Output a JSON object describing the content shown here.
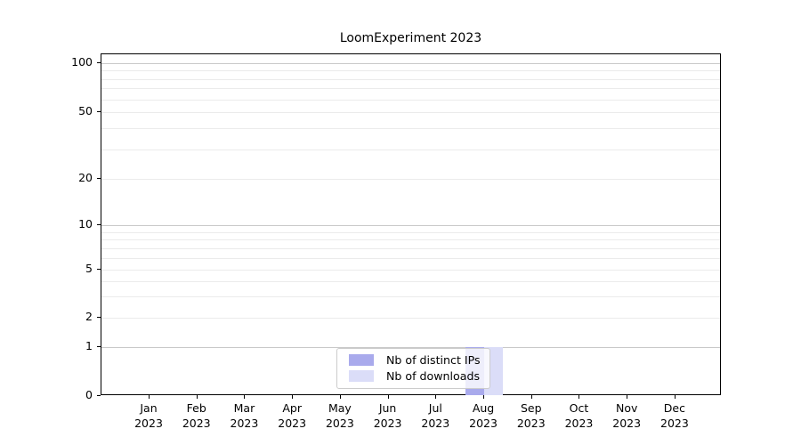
{
  "chart_data": {
    "type": "bar",
    "title": "LoomExperiment 2023",
    "categories": [
      "Jan",
      "Feb",
      "Mar",
      "Apr",
      "May",
      "Jun",
      "Jul",
      "Aug",
      "Sep",
      "Oct",
      "Nov",
      "Dec"
    ],
    "x_tick_second_line": "2023",
    "series": [
      {
        "name": "Nb of distinct IPs",
        "color": "#a9aaec",
        "values": [
          0,
          0,
          0,
          0,
          0,
          0,
          0,
          1,
          0,
          0,
          0,
          0
        ]
      },
      {
        "name": "Nb of downloads",
        "color": "#dbddf8",
        "values": [
          0,
          0,
          0,
          0,
          0,
          0,
          0,
          1,
          0,
          0,
          0,
          0
        ]
      }
    ],
    "xlabel": "",
    "ylabel": "",
    "y_tick_labels": [
      0,
      1,
      2,
      5,
      10,
      20,
      50,
      100
    ],
    "y_minor_gridlines": [
      3,
      4,
      6,
      7,
      8,
      9,
      30,
      40,
      60,
      70,
      80,
      90
    ],
    "y_major_gridlines": [
      1,
      10,
      100
    ],
    "y_scale": "log-like with 0 baseline",
    "ylim": [
      0,
      130
    ],
    "grid": "horizontal only",
    "legend_position": "inside bottom-center"
  },
  "colors": {
    "major_grid": "#c9c9c9",
    "minor_grid": "#ebebeb",
    "spine": "#000000",
    "text": "#000000",
    "legend_border": "#cccccc",
    "legend_background": "rgba(255,255,255,0.8)"
  }
}
